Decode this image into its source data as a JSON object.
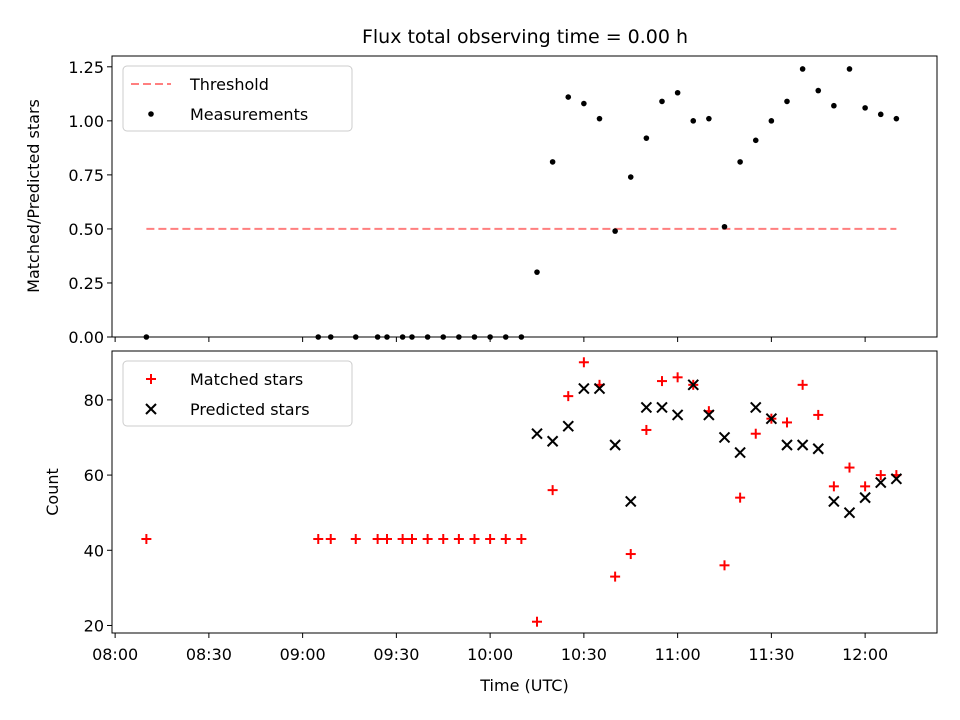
{
  "title": "Flux total observing time = 0.00 h",
  "colors": {
    "threshold": "#ff7f7f",
    "measurement": "#000000",
    "matched": "#ff0000",
    "predicted": "#000000"
  },
  "chart_data": [
    {
      "type": "scatter",
      "title": "Flux total observing time = 0.00 h",
      "xlabel": "",
      "ylabel": "Matched/Predicted stars",
      "xlim": [
        "07:59",
        "12:23"
      ],
      "ylim": [
        0,
        1.3
      ],
      "yticks": [
        "0.00",
        "0.25",
        "0.50",
        "0.75",
        "1.00",
        "1.25"
      ],
      "legend_position": "top-left",
      "series": [
        {
          "name": "Threshold",
          "kind": "dashed-line",
          "x": [
            "08:10",
            "12:10"
          ],
          "y": [
            0.5,
            0.5
          ]
        },
        {
          "name": "Measurements",
          "kind": "dot",
          "x": [
            "08:10",
            "09:05",
            "09:09",
            "09:17",
            "09:24",
            "09:27",
            "09:32",
            "09:35",
            "09:40",
            "09:45",
            "09:50",
            "09:55",
            "10:00",
            "10:05",
            "10:10",
            "10:15",
            "10:20",
            "10:25",
            "10:30",
            "10:35",
            "10:40",
            "10:45",
            "10:50",
            "10:55",
            "11:00",
            "11:05",
            "11:10",
            "11:15",
            "11:20",
            "11:25",
            "11:30",
            "11:35",
            "11:40",
            "11:45",
            "11:50",
            "11:55",
            "12:00",
            "12:05",
            "12:10"
          ],
          "y": [
            0,
            0,
            0,
            0,
            0,
            0,
            0,
            0,
            0,
            0,
            0,
            0,
            0,
            0,
            0,
            0.3,
            0.81,
            1.11,
            1.08,
            1.01,
            0.49,
            0.74,
            0.92,
            1.09,
            1.13,
            1.0,
            1.01,
            0.51,
            0.81,
            0.91,
            1.0,
            1.09,
            1.24,
            1.14,
            1.07,
            1.24,
            1.06,
            1.03,
            1.01
          ]
        }
      ]
    },
    {
      "type": "scatter",
      "xlabel": "Time (UTC)",
      "ylabel": "Count",
      "xlim": [
        "07:59",
        "12:23"
      ],
      "ylim": [
        18,
        93
      ],
      "yticks": [
        "20",
        "40",
        "60",
        "80"
      ],
      "xticks": [
        "08:00",
        "08:30",
        "09:00",
        "09:30",
        "10:00",
        "10:30",
        "11:00",
        "11:30",
        "12:00"
      ],
      "legend_position": "top-left",
      "series": [
        {
          "name": "Matched stars",
          "kind": "plus",
          "x": [
            "08:10",
            "09:05",
            "09:09",
            "09:17",
            "09:24",
            "09:27",
            "09:32",
            "09:35",
            "09:40",
            "09:45",
            "09:50",
            "09:55",
            "10:00",
            "10:05",
            "10:10",
            "10:15",
            "10:20",
            "10:25",
            "10:30",
            "10:35",
            "10:40",
            "10:45",
            "10:50",
            "10:55",
            "11:00",
            "11:05",
            "11:10",
            "11:15",
            "11:20",
            "11:25",
            "11:30",
            "11:35",
            "11:40",
            "11:45",
            "11:50",
            "11:55",
            "12:00",
            "12:05",
            "12:10"
          ],
          "y": [
            43,
            43,
            43,
            43,
            43,
            43,
            43,
            43,
            43,
            43,
            43,
            43,
            43,
            43,
            43,
            21,
            56,
            81,
            90,
            84,
            33,
            39,
            72,
            85,
            86,
            84,
            77,
            36,
            54,
            71,
            75,
            74,
            84,
            76,
            57,
            62,
            57,
            60,
            60
          ]
        },
        {
          "name": "Predicted stars",
          "kind": "x",
          "x": [
            "10:15",
            "10:20",
            "10:25",
            "10:30",
            "10:35",
            "10:40",
            "10:45",
            "10:50",
            "10:55",
            "11:00",
            "11:05",
            "11:10",
            "11:15",
            "11:20",
            "11:25",
            "11:30",
            "11:35",
            "11:40",
            "11:45",
            "11:50",
            "11:55",
            "12:00",
            "12:05",
            "12:10"
          ],
          "y": [
            71,
            69,
            73,
            83,
            83,
            68,
            53,
            78,
            78,
            76,
            84,
            76,
            70,
            66,
            78,
            75,
            68,
            68,
            67,
            53,
            50,
            54,
            58,
            59
          ]
        }
      ]
    }
  ]
}
